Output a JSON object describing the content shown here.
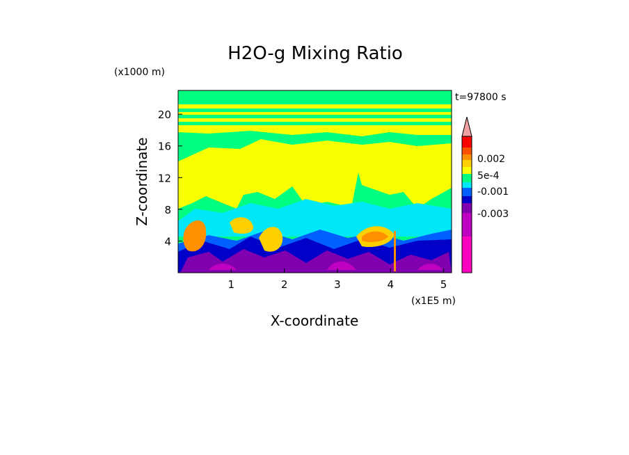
{
  "chart_data": {
    "type": "heatmap",
    "title": "H2O-g Mixing Ratio",
    "xlabel": "X-coordinate",
    "ylabel": "Z-coordinate",
    "x_unit": "(x1E5 m)",
    "y_unit": "(x1000 m)",
    "time_label": "t=97800 s",
    "x_ticks": [
      "1",
      "2",
      "3",
      "4",
      "5"
    ],
    "y_ticks": [
      "4",
      "8",
      "12",
      "16",
      "20"
    ],
    "xlim": [
      0,
      5.15
    ],
    "ylim": [
      0,
      23
    ],
    "colorbar": {
      "labels": [
        "0.002",
        "5e-4",
        "-0.001",
        "-0.003"
      ],
      "colors": [
        "#ff00c0",
        "#c000c0",
        "#8000b0",
        "#0000c8",
        "#0060ff",
        "#00e8f8",
        "#00ff80",
        "#f8ff00",
        "#ffd000",
        "#ff9000",
        "#ff5000",
        "#ff0000",
        "#f0a0a0"
      ]
    }
  }
}
